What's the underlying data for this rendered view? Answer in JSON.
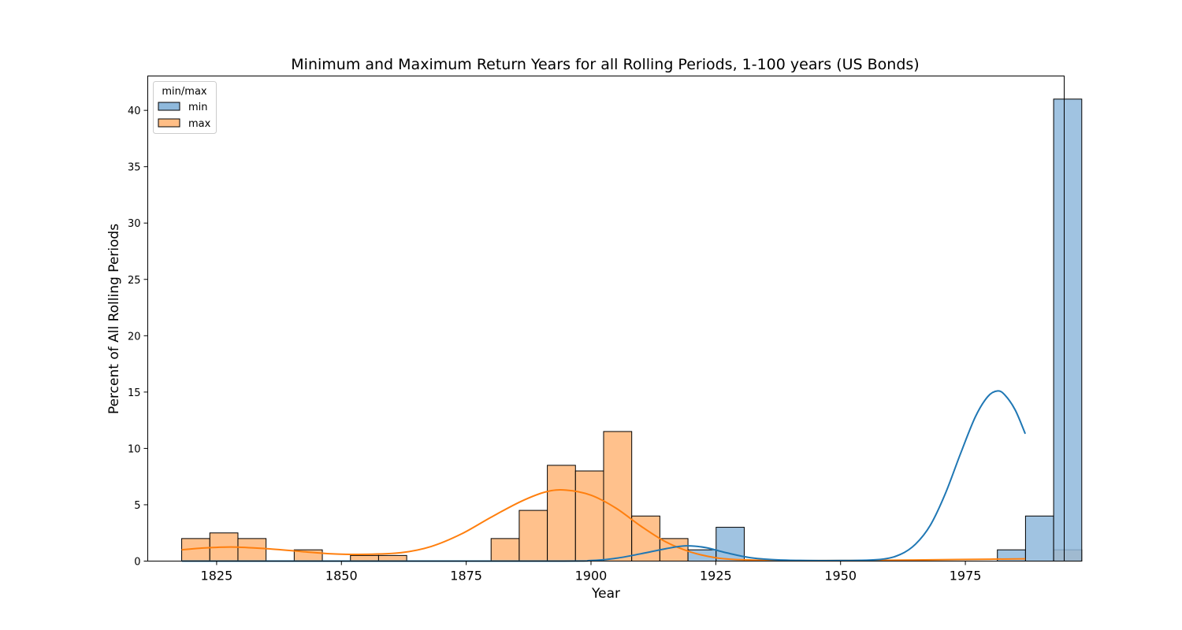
{
  "chart_data": {
    "type": "histogram",
    "title": "Minimum and Maximum Return Years for all Rolling Periods, 1-100 years (US Bonds)",
    "xlabel": "Year",
    "ylabel": "Percent of All Rolling Periods",
    "xlim": [
      1811.2,
      1994.8
    ],
    "ylim": [
      0,
      43.05
    ],
    "xticks": [
      1825,
      1850,
      1875,
      1900,
      1925,
      1950,
      1975
    ],
    "yticks": [
      0,
      5,
      10,
      15,
      20,
      25,
      30,
      35,
      40
    ],
    "bin_start": 1818,
    "bin_width": 5.635,
    "legend": {
      "title": "min/max",
      "position": "upper-left",
      "entries": [
        "min",
        "max"
      ]
    },
    "series": [
      {
        "name": "max",
        "color": "#ffbe86",
        "kde_color": "#ff7f0e",
        "counts": [
          2,
          2.5,
          2,
          0,
          1,
          0,
          0.5,
          0.5,
          0,
          0,
          0,
          2,
          4.5,
          8.5,
          8,
          11.5,
          4,
          2,
          0,
          0,
          0,
          0,
          0,
          0,
          0,
          0,
          0,
          0,
          0,
          0,
          0,
          1
        ],
        "kde": [
          [
            1818,
            1.0
          ],
          [
            1822,
            1.15
          ],
          [
            1828,
            1.25
          ],
          [
            1835,
            1.1
          ],
          [
            1842,
            0.85
          ],
          [
            1848,
            0.65
          ],
          [
            1855,
            0.6
          ],
          [
            1862,
            0.75
          ],
          [
            1868,
            1.3
          ],
          [
            1874,
            2.4
          ],
          [
            1880,
            3.9
          ],
          [
            1886,
            5.3
          ],
          [
            1891,
            6.15
          ],
          [
            1895,
            6.3
          ],
          [
            1900,
            5.85
          ],
          [
            1905,
            4.7
          ],
          [
            1910,
            3.1
          ],
          [
            1915,
            1.7
          ],
          [
            1920,
            0.8
          ],
          [
            1925,
            0.3
          ],
          [
            1930,
            0.12
          ],
          [
            1940,
            0.05
          ],
          [
            1950,
            0.05
          ],
          [
            1960,
            0.08
          ],
          [
            1970,
            0.12
          ],
          [
            1980,
            0.17
          ],
          [
            1987,
            0.2
          ]
        ]
      },
      {
        "name": "min",
        "color": "#8fb9dc",
        "kde_color": "#1f77b4",
        "counts": [
          0,
          0,
          0,
          0,
          0,
          0,
          0,
          0,
          0,
          0,
          0,
          0,
          0,
          0,
          0,
          0,
          0,
          0,
          1,
          3,
          0,
          0,
          0,
          0,
          0,
          0,
          0,
          0,
          0,
          1,
          4,
          41
        ],
        "kde": [
          [
            1818,
            0.0
          ],
          [
            1890,
            0.0
          ],
          [
            1900,
            0.05
          ],
          [
            1905,
            0.25
          ],
          [
            1910,
            0.65
          ],
          [
            1915,
            1.1
          ],
          [
            1919,
            1.35
          ],
          [
            1923,
            1.2
          ],
          [
            1927,
            0.75
          ],
          [
            1932,
            0.3
          ],
          [
            1938,
            0.1
          ],
          [
            1950,
            0.05
          ],
          [
            1958,
            0.15
          ],
          [
            1962,
            0.6
          ],
          [
            1965,
            1.5
          ],
          [
            1968,
            3.2
          ],
          [
            1971,
            6.0
          ],
          [
            1974,
            9.5
          ],
          [
            1977,
            12.8
          ],
          [
            1979.5,
            14.6
          ],
          [
            1981.5,
            15.1
          ],
          [
            1983,
            14.7
          ],
          [
            1985,
            13.4
          ],
          [
            1987,
            11.3
          ]
        ]
      }
    ]
  }
}
